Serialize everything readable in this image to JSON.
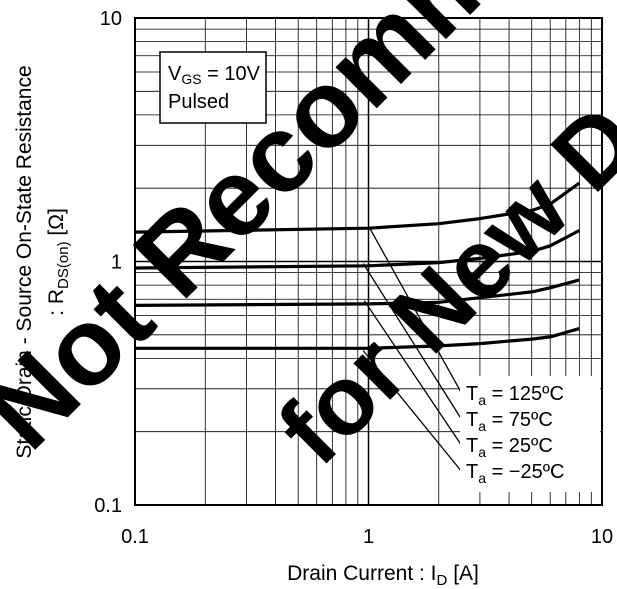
{
  "chart_data": {
    "type": "line",
    "x_scale": "log",
    "y_scale": "log",
    "xlim": [
      0.1,
      10
    ],
    "ylim": [
      0.1,
      10
    ],
    "x_ticks": [
      "0.1",
      "1",
      "10"
    ],
    "y_ticks": [
      "10",
      "1",
      "0.1"
    ],
    "xlabel": {
      "main": "Drain Current : I",
      "sub": "D",
      "unit": " [A]"
    },
    "ylabel": {
      "line1": "Static Drain - Source On-State Resistance",
      "line2_pre": ": R",
      "line2_sub": "DS(on)",
      "line2_post": " [Ω]"
    },
    "conditions": {
      "line1_main": "V",
      "line1_sub": "GS",
      "line1_post": " = 10V",
      "line2": "Pulsed"
    },
    "grid": true,
    "series": [
      {
        "name": "T_a = 125ºC",
        "label_main": "T",
        "label_sub": "a",
        "label_post": " = 125ºC",
        "points": [
          [
            0.1,
            1.32
          ],
          [
            1,
            1.37
          ],
          [
            2,
            1.43
          ],
          [
            3,
            1.5
          ],
          [
            5,
            1.62
          ],
          [
            6,
            1.72
          ],
          [
            8,
            2.1
          ]
        ]
      },
      {
        "name": "T_a = 75ºC",
        "label_main": "T",
        "label_sub": "a",
        "label_post": " = 75ºC",
        "points": [
          [
            0.1,
            0.94
          ],
          [
            1,
            0.96
          ],
          [
            2,
            0.99
          ],
          [
            3,
            1.03
          ],
          [
            5,
            1.1
          ],
          [
            6,
            1.16
          ],
          [
            8,
            1.34
          ]
        ]
      },
      {
        "name": "T_a = 25ºC",
        "label_main": "T",
        "label_sub": "a",
        "label_post": " = 25ºC",
        "points": [
          [
            0.1,
            0.66
          ],
          [
            1,
            0.67
          ],
          [
            2,
            0.68
          ],
          [
            3,
            0.71
          ],
          [
            5,
            0.75
          ],
          [
            6,
            0.78
          ],
          [
            8,
            0.84
          ]
        ]
      },
      {
        "name": "T_a = −25ºC",
        "label_main": "T",
        "label_sub": "a",
        "label_post": " = −25ºC",
        "points": [
          [
            0.1,
            0.44
          ],
          [
            1,
            0.44
          ],
          [
            2,
            0.45
          ],
          [
            3,
            0.46
          ],
          [
            5,
            0.48
          ],
          [
            6,
            0.49
          ],
          [
            8,
            0.53
          ]
        ]
      }
    ],
    "leaders": [
      {
        "series": 0,
        "from": [
          1.0,
          1.4
        ]
      },
      {
        "series": 1,
        "from": [
          0.95,
          0.98
        ]
      },
      {
        "series": 2,
        "from": [
          0.96,
          0.69
        ]
      },
      {
        "series": 3,
        "from": [
          0.95,
          0.43
        ]
      }
    ]
  },
  "watermark": {
    "line1": "Not Recommended",
    "line2": "for New Design"
  }
}
